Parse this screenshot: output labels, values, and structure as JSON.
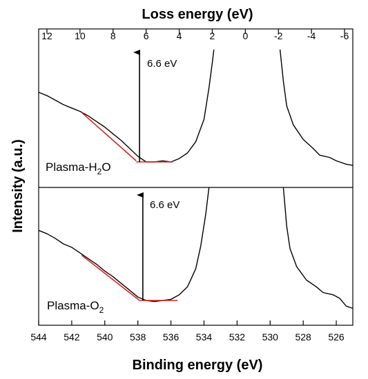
{
  "chart_data": {
    "type": "line",
    "xlabel": "Binding energy (eV)",
    "x2label": "Loss energy (eV)",
    "ylabel": "Intensity (a.u.)",
    "xlim": [
      544,
      525
    ],
    "x2lim": [
      12.5,
      -6.5
    ],
    "xticks": [
      544,
      542,
      540,
      538,
      536,
      534,
      532,
      530,
      528,
      526
    ],
    "x2ticks": [
      12,
      10,
      8,
      6,
      4,
      2,
      0,
      -2,
      -4,
      -6
    ],
    "grid": false,
    "legend": "none",
    "panels": [
      {
        "label_main": "Plasma-H",
        "label_sub": "2",
        "label_tail": "O",
        "annotation": "6.6 eV",
        "onset_binding_energy": 537.9,
        "spectrum": [
          [
            544.0,
            0.62
          ],
          [
            543.5,
            0.59
          ],
          [
            543.0,
            0.55
          ],
          [
            542.5,
            0.51
          ],
          [
            542.0,
            0.48
          ],
          [
            541.5,
            0.45
          ],
          [
            541.0,
            0.41
          ],
          [
            540.5,
            0.36
          ],
          [
            540.0,
            0.31
          ],
          [
            539.5,
            0.25
          ],
          [
            539.0,
            0.19
          ],
          [
            538.5,
            0.12
          ],
          [
            538.0,
            0.05
          ],
          [
            537.5,
            0.0
          ],
          [
            537.0,
            0.0
          ],
          [
            536.5,
            0.01
          ],
          [
            536.0,
            0.0
          ],
          [
            535.5,
            0.03
          ],
          [
            535.0,
            0.08
          ],
          [
            534.5,
            0.18
          ],
          [
            534.0,
            0.38
          ],
          [
            533.7,
            0.66
          ],
          [
            533.5,
            0.88
          ],
          [
            533.4,
            1.0
          ]
        ],
        "spectrum_right": [
          [
            529.4,
            1.0
          ],
          [
            529.2,
            0.72
          ],
          [
            529.0,
            0.5
          ],
          [
            528.6,
            0.33
          ],
          [
            528.0,
            0.2
          ],
          [
            527.4,
            0.12
          ],
          [
            527.0,
            0.06
          ],
          [
            526.4,
            0.04
          ],
          [
            526.0,
            0.01
          ],
          [
            525.4,
            -0.02
          ],
          [
            525.0,
            -0.03
          ]
        ],
        "fit_line": [
          [
            541.4,
            0.44
          ],
          [
            538.1,
            0.01
          ]
        ],
        "baseline": [
          [
            538.1,
            0.0
          ],
          [
            535.9,
            0.0
          ]
        ]
      },
      {
        "label_main": "Plasma-O",
        "label_sub": "2",
        "label_tail": "",
        "annotation": "6.6 eV",
        "onset_binding_energy": 537.7,
        "spectrum": [
          [
            544.0,
            0.62
          ],
          [
            543.5,
            0.59
          ],
          [
            543.0,
            0.55
          ],
          [
            542.5,
            0.5
          ],
          [
            542.0,
            0.47
          ],
          [
            541.5,
            0.42
          ],
          [
            541.0,
            0.37
          ],
          [
            540.5,
            0.32
          ],
          [
            540.0,
            0.26
          ],
          [
            539.5,
            0.21
          ],
          [
            539.0,
            0.15
          ],
          [
            538.5,
            0.09
          ],
          [
            538.0,
            0.03
          ],
          [
            537.5,
            0.0
          ],
          [
            537.0,
            -0.01
          ],
          [
            536.5,
            0.0
          ],
          [
            536.0,
            0.01
          ],
          [
            535.5,
            0.05
          ],
          [
            535.0,
            0.12
          ],
          [
            534.5,
            0.28
          ],
          [
            534.2,
            0.48
          ],
          [
            533.9,
            0.76
          ],
          [
            533.7,
            1.0
          ]
        ],
        "spectrum_right": [
          [
            529.2,
            1.0
          ],
          [
            529.0,
            0.66
          ],
          [
            528.8,
            0.46
          ],
          [
            528.4,
            0.3
          ],
          [
            527.8,
            0.18
          ],
          [
            527.2,
            0.12
          ],
          [
            526.8,
            0.07
          ],
          [
            526.2,
            0.05
          ],
          [
            525.8,
            0.02
          ],
          [
            525.4,
            -0.05
          ],
          [
            525.0,
            -0.07
          ]
        ],
        "fit_line": [
          [
            541.4,
            0.4
          ],
          [
            537.9,
            0.0
          ]
        ],
        "baseline": [
          [
            537.9,
            0.0
          ],
          [
            535.6,
            0.0
          ]
        ]
      }
    ]
  }
}
